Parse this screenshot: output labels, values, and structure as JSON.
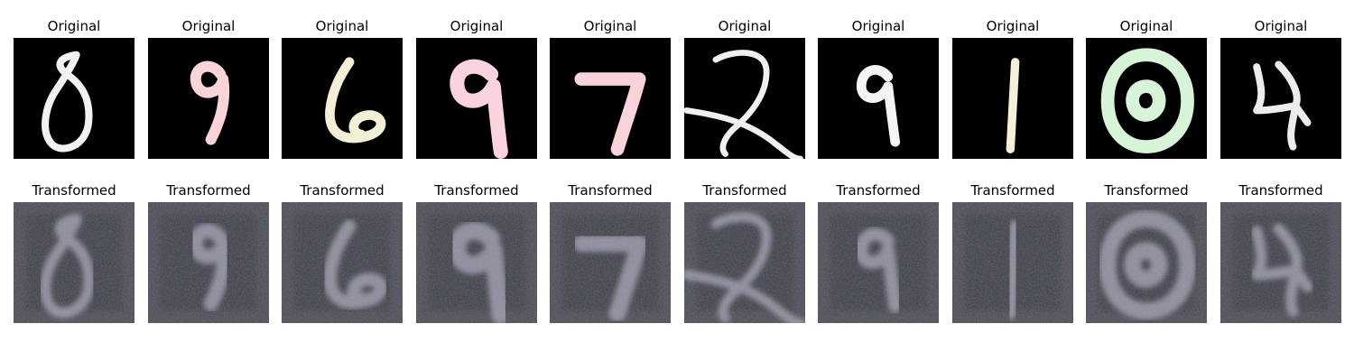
{
  "row_titles": {
    "top": "Original",
    "bottom": "Transformed"
  },
  "colors": {
    "original_background": "#000000",
    "transformed_background": "#4a4a52"
  },
  "samples": [
    {
      "digit": "0",
      "original_color": "#f2f2f2"
    },
    {
      "digit": "9",
      "original_color": "#f8d4d8"
    },
    {
      "digit": "6",
      "original_color": "#f1f0d4"
    },
    {
      "digit": "9",
      "original_color": "#fbd3dd"
    },
    {
      "digit": "7",
      "original_color": "#f8d3dc"
    },
    {
      "digit": "2",
      "original_color": "#f0f0f0"
    },
    {
      "digit": "9",
      "original_color": "#f4f4f4"
    },
    {
      "digit": "1",
      "original_color": "#f5f0d8"
    },
    {
      "digit": "0",
      "original_color": "#d8f4d8"
    },
    {
      "digit": "4",
      "original_color": "#ececec"
    }
  ]
}
